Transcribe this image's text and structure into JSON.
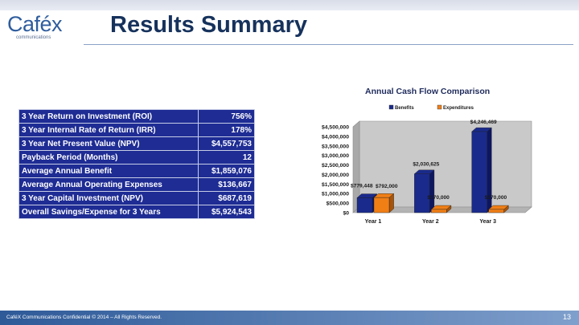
{
  "brand": {
    "logo_text": "Caféx",
    "logo_sub": "communications"
  },
  "slide": {
    "title": "Results Summary",
    "footer": "CaféX Communications Confidential © 2014 – All Rights Reserved.",
    "page_number": "13"
  },
  "metrics_table": {
    "rows": [
      {
        "label": "3 Year Return on Investment (ROI)",
        "value": "756%"
      },
      {
        "label": "3 Year Internal Rate of Return (IRR)",
        "value": "178%"
      },
      {
        "label": "3 Year Net Present Value (NPV)",
        "value": "$4,557,753"
      },
      {
        "label": "Payback Period (Months)",
        "value": "12"
      },
      {
        "label": "Average Annual Benefit",
        "value": "$1,859,076"
      },
      {
        "label": "Average Annual Operating Expenses",
        "value": "$136,667"
      },
      {
        "label": "3 Year Capital Investment (NPV)",
        "value": "$687,619"
      },
      {
        "label": "Overall Savings/Expense for 3 Years",
        "value": "$5,924,543"
      }
    ]
  },
  "colors": {
    "benefits": "#1a2a8c",
    "expenditures": "#f07f16",
    "table_bg": "#1e2c94",
    "title": "#16325c"
  },
  "chart_data": {
    "type": "bar",
    "title": "Annual Cash Flow Comparison",
    "xlabel": "",
    "ylabel": "",
    "categories": [
      "Year 1",
      "Year 2",
      "Year 3"
    ],
    "series": [
      {
        "name": "Benefits",
        "values": [
          779448,
          2030625,
          4246469
        ],
        "labels": [
          "$779,448",
          "$2,030,625",
          "$4,246,469"
        ]
      },
      {
        "name": "Expenditures",
        "values": [
          792000,
          170000,
          170000
        ],
        "labels": [
          "$792,000",
          "$170,000",
          "$170,000"
        ]
      }
    ],
    "yticks": [
      "$0",
      "$500,000",
      "$1,000,000",
      "$1,500,000",
      "$2,000,000",
      "$2,500,000",
      "$3,000,000",
      "$3,500,000",
      "$4,000,000",
      "$4,500,000"
    ],
    "ylim": [
      0,
      4500000
    ],
    "legend_position": "top",
    "grid": false
  }
}
